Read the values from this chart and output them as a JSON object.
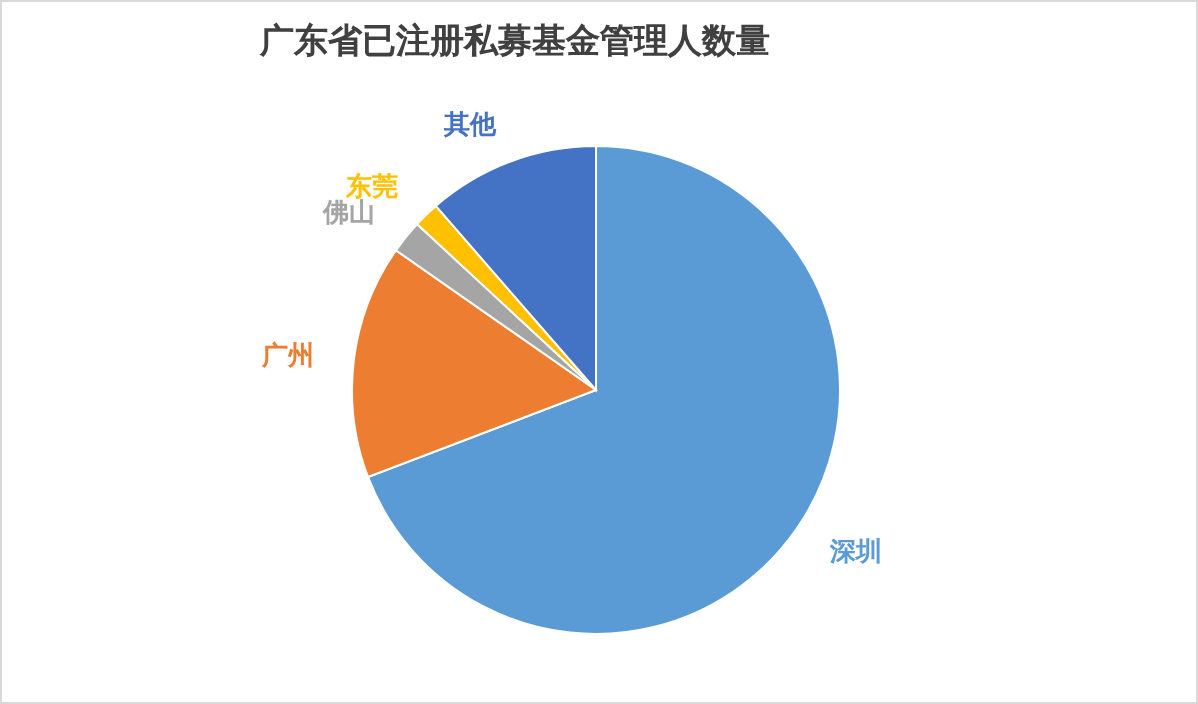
{
  "chart_data": {
    "type": "pie",
    "title": "广东省已注册私募基金管理人数量",
    "categories": [
      "深圳",
      "广州",
      "佛山",
      "东莞",
      "其他"
    ],
    "values": [
      69.2,
      15.5,
      2.2,
      1.7,
      11.4
    ],
    "colors": [
      "#5b9bd5",
      "#ed7d31",
      "#a5a5a5",
      "#ffc000",
      "#4472c4"
    ]
  }
}
